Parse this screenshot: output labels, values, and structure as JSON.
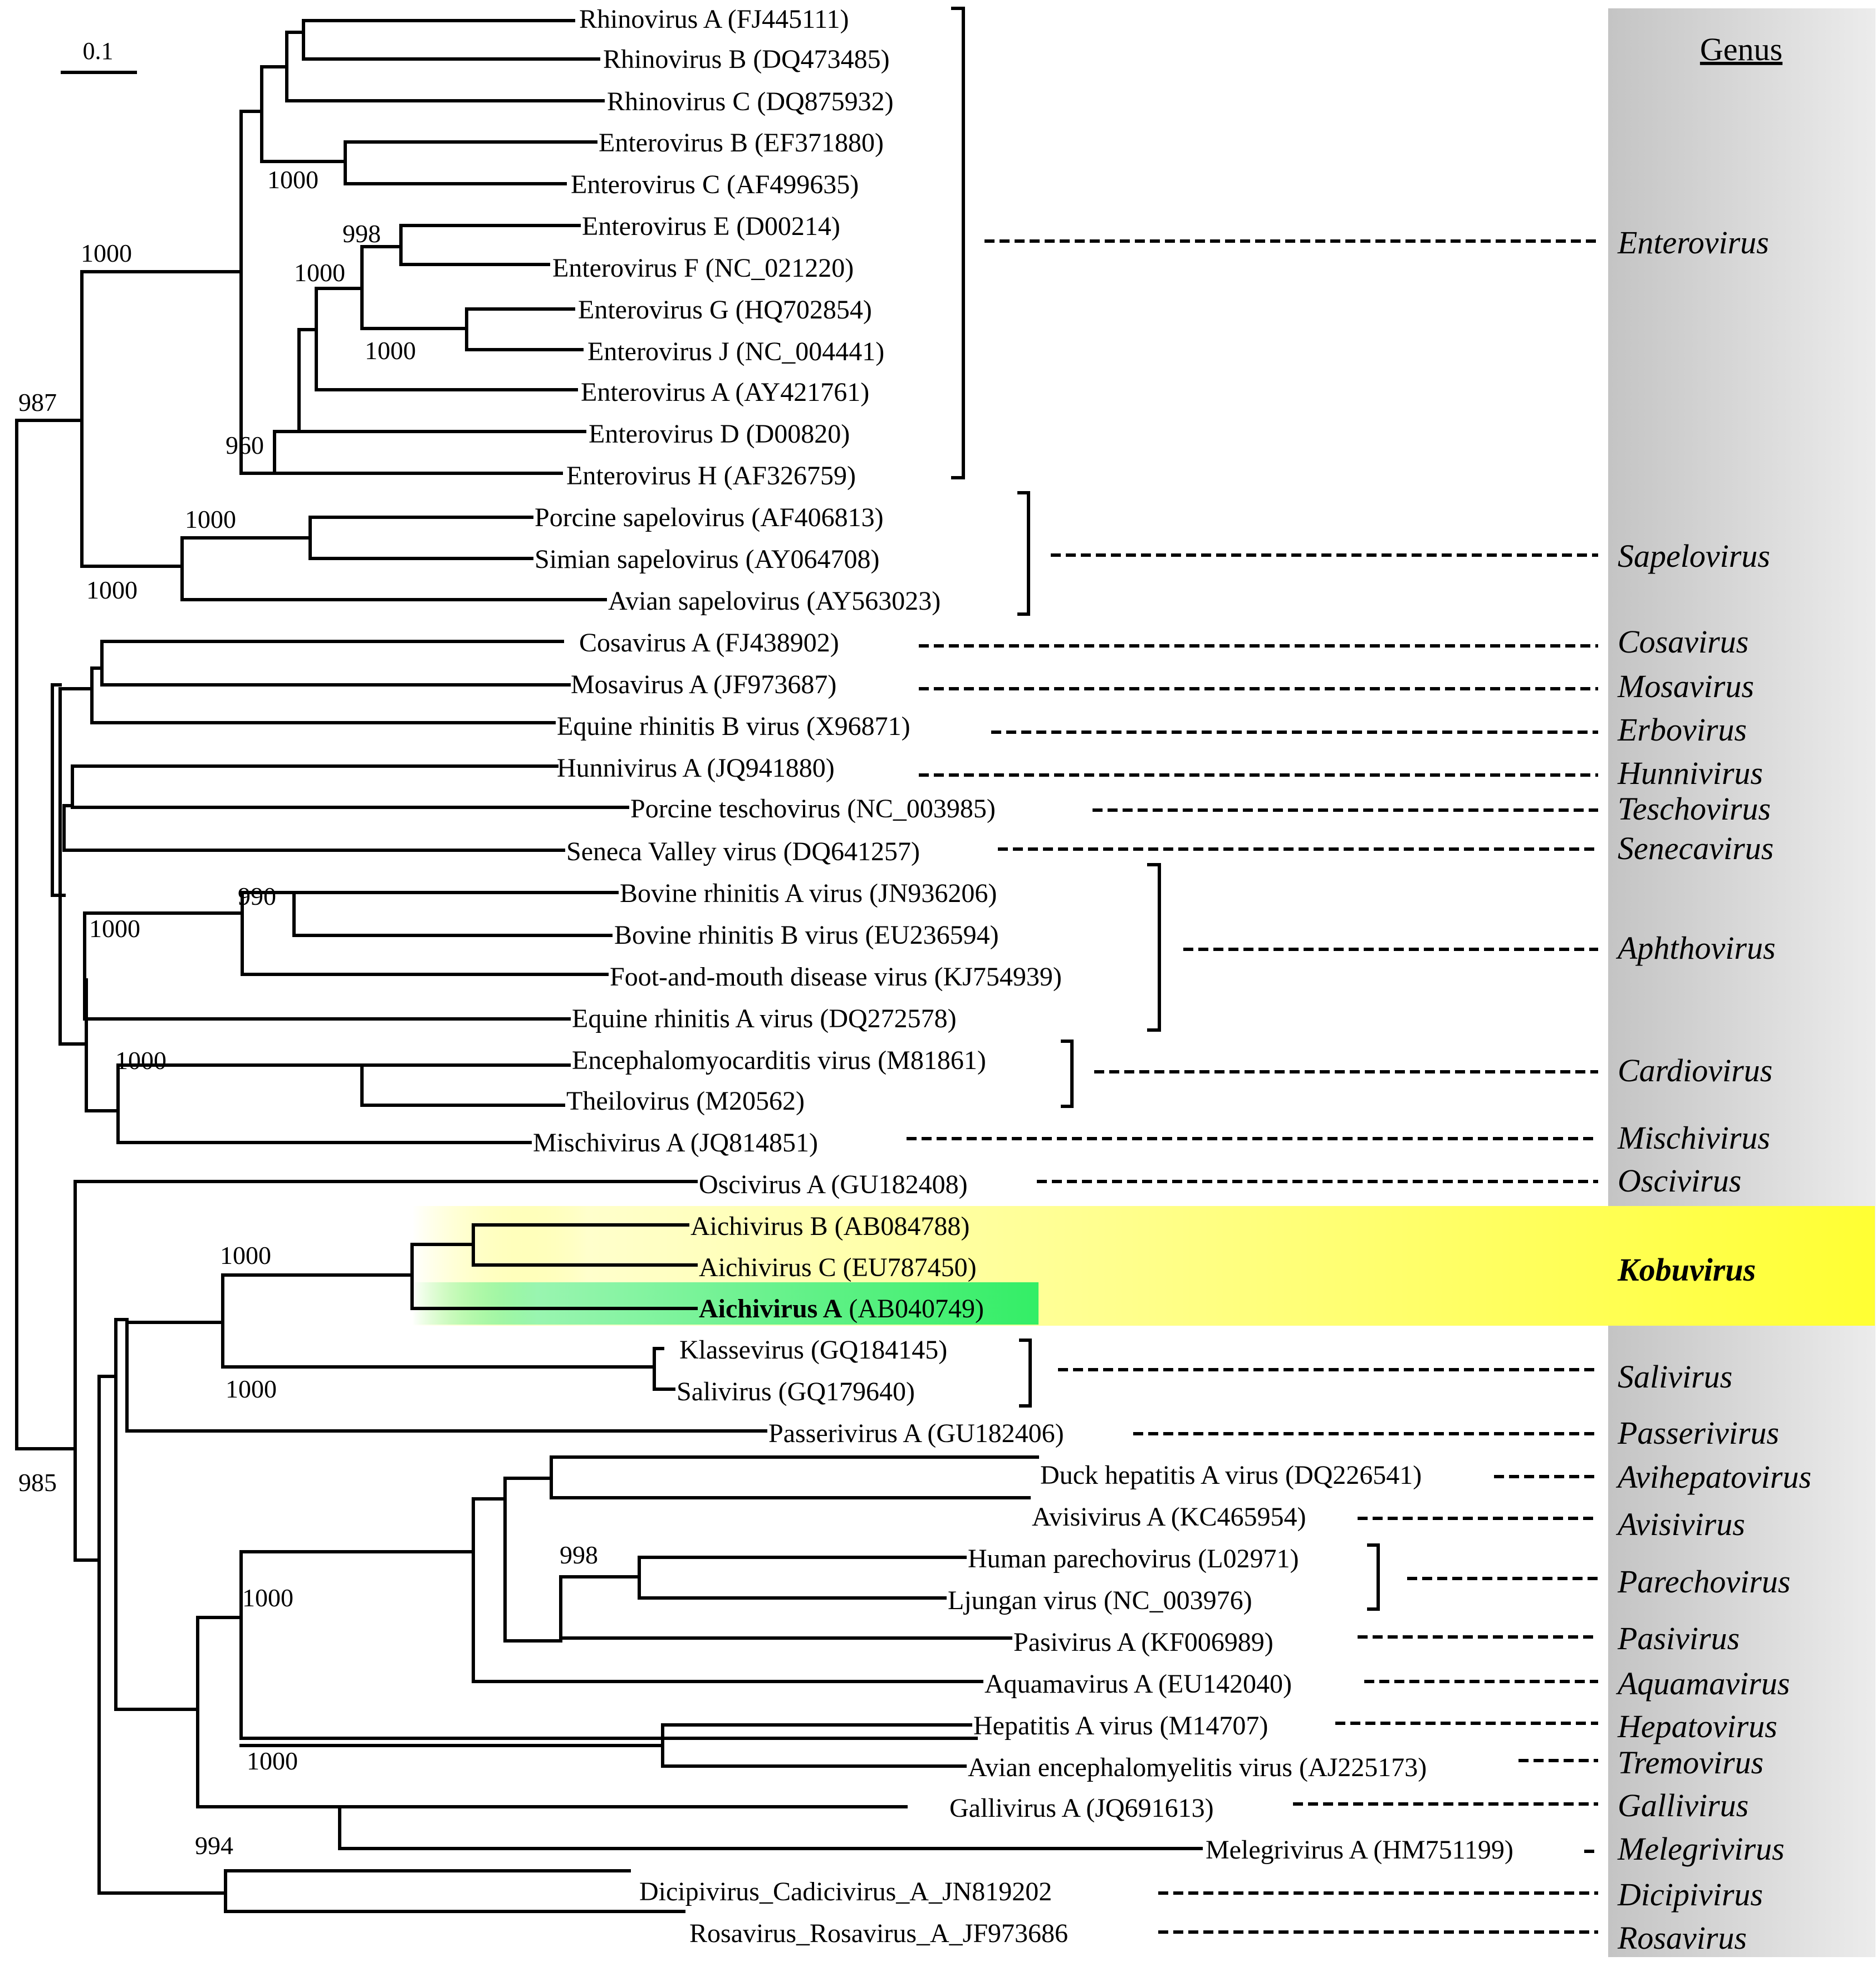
{
  "header": {
    "genus_label": "Genus",
    "scale_label": "0.1"
  },
  "colors": {
    "kobuvirus_highlight": "#ffff33",
    "aichivirus_a_highlight": "#33ee66",
    "genus_band": "#c8c8c8"
  },
  "leaves": {
    "rhinoA": "Rhinovirus A (FJ445111)",
    "rhinoB": "Rhinovirus B (DQ473485)",
    "rhinoC": "Rhinovirus C (DQ875932)",
    "enteroB": "Enterovirus B (EF371880)",
    "enteroC": "Enterovirus C (AF499635)",
    "enteroE": "Enterovirus E (D00214)",
    "enteroF": "Enterovirus F (NC_021220)",
    "enteroG": "Enterovirus G (HQ702854)",
    "enteroJ": "Enterovirus J (NC_004441)",
    "enteroA": "Enterovirus A (AY421761)",
    "enteroD": "Enterovirus D (D00820)",
    "enteroH": "Enterovirus H (AF326759)",
    "porcSap": "Porcine sapelovirus (AF406813)",
    "simSap": "Simian sapelovirus (AY064708)",
    "avSap": "Avian sapelovirus (AY563023)",
    "cosa": "Cosavirus A (FJ438902)",
    "mosa": "Mosavirus A (JF973687)",
    "erbo": "Equine rhinitis B virus (X96871)",
    "hunni": "Hunnivirus A (JQ941880)",
    "tescho": "Porcine teschovirus (NC_003985)",
    "seneca": "Seneca Valley virus (DQ641257)",
    "bovA": "Bovine rhinitis A virus (JN936206)",
    "bovB": "Bovine rhinitis B virus (EU236594)",
    "fmdv": "Foot-and-mouth disease virus (KJ754939)",
    "eqA": "Equine rhinitis A virus (DQ272578)",
    "emcv": "Encephalomyocarditis virus (M81861)",
    "theilo": "Theilovirus (M20562)",
    "mischi": "Mischivirus A (JQ814851)",
    "osci": "Oscivirus A (GU182408)",
    "aichiB": "Aichivirus B (AB084788)",
    "aichiC": "Aichivirus C (EU787450)",
    "aichiA_name": "Aichivirus A",
    "aichiA_acc": "(AB040749)",
    "klasse": "Klassevirus (GQ184145)",
    "sali": "Salivirus (GQ179640)",
    "passeri": "Passerivirus A (GU182406)",
    "duck": "Duck hepatitis A virus (DQ226541)",
    "avisi": "Avisivirus A (KC465954)",
    "hpev": "Human parechovirus (L02971)",
    "ljungan": "Ljungan virus (NC_003976)",
    "pasi": "Pasivirus A (KF006989)",
    "aquama": "Aquamavirus A (EU142040)",
    "hav": "Hepatitis A virus (M14707)",
    "aev": "Avian encephalomyelitis virus (AJ225173)",
    "galli": "Gallivirus A (JQ691613)",
    "meleg": "Melegrivirus A (HM751199)",
    "dicipi": "Dicipivirus_Cadicivirus_A_JN819202",
    "rosa": "Rosavirus_Rosavirus_A_JF973686"
  },
  "genera": {
    "enterovirus": "Enterovirus",
    "sapelovirus": "Sapelovirus",
    "cosavirus": "Cosavirus",
    "mosavirus": "Mosavirus",
    "erbovirus": "Erbovirus",
    "hunnivirus": "Hunnivirus",
    "teschovirus": "Teschovirus",
    "senecavirus": "Senecavirus",
    "aphthovirus": "Aphthovirus",
    "cardiovirus": "Cardiovirus",
    "mischivirus": "Mischivirus",
    "oscivirus": "Oscivirus",
    "kobuvirus": "Kobuvirus",
    "salivirus": "Salivirus",
    "passerivirus": "Passerivirus",
    "avihepatovirus": "Avihepatovirus",
    "avisivirus": "Avisivirus",
    "parechovirus": "Parechovirus",
    "pasivirus": "Pasivirus",
    "aquamavirus": "Aquamavirus",
    "hepatovirus": "Hepatovirus",
    "tremovirus": "Tremovirus",
    "gallivirus": "Gallivirus",
    "melegrivirus": "Melegrivirus",
    "dicipivirus": "Dicipivirus",
    "rosavirus": "Rosavirus"
  },
  "support": {
    "n987": "987",
    "n1000_entero": "1000",
    "n1000_entBC": "1000",
    "n998_entEF": "998",
    "n1000_entEFGJ": "1000",
    "n1000_entGJ": "1000",
    "n960": "960",
    "n1000_sap": "1000",
    "n1000_sapPS": "1000",
    "n990": "990",
    "n1000_aphtho": "1000",
    "n1000_cardio": "1000",
    "n1000_kobu": "1000",
    "n1000_sali": "1000",
    "n998_pare": "998",
    "n1000_grpA": "1000",
    "n1000_hepa": "1000",
    "n994": "994",
    "n985": "985"
  }
}
